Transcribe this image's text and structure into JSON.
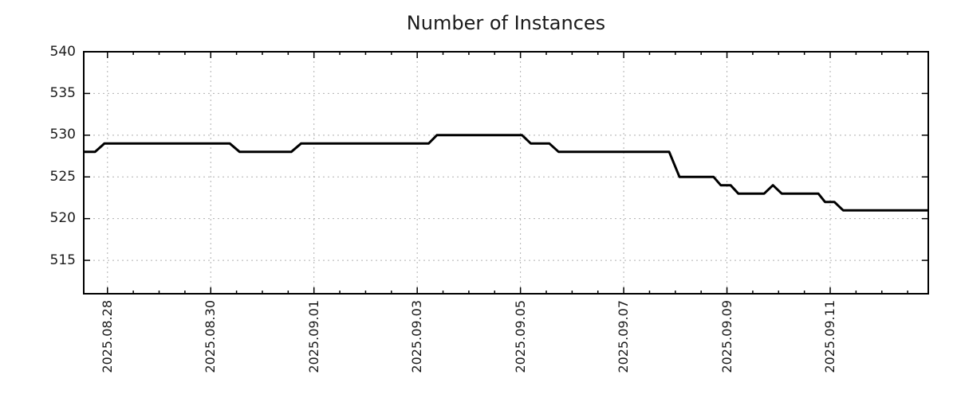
{
  "title": "Number of Instances",
  "colors": {
    "background": "#ffffff",
    "line": "#000000",
    "grid": "#b0b0b0",
    "axis": "#000000",
    "text": "#1a1a1a"
  },
  "chart_data": {
    "type": "line",
    "title": "Number of Instances",
    "xlabel": "",
    "ylabel": "",
    "grid": true,
    "legend": null,
    "x_axis": {
      "day_zero_label": "2025.08.28",
      "range_days": [
        -0.46,
        15.9
      ],
      "major_tick_days": [
        0,
        2,
        4,
        6,
        8,
        10,
        12,
        14
      ],
      "tick_labels": [
        "2025.08.28",
        "2025.08.30",
        "2025.09.01",
        "2025.09.03",
        "2025.09.05",
        "2025.09.07",
        "2025.09.09",
        "2025.09.11"
      ],
      "minor_tick_interval_days": 0.5
    },
    "y_axis": {
      "range": [
        511,
        540
      ],
      "tick_values": [
        540,
        535,
        530,
        525,
        520,
        515
      ],
      "tick_labels": [
        "540",
        "535",
        "530",
        "525",
        "520",
        "515"
      ]
    },
    "series": [
      {
        "name": "Number of Instances",
        "points_day_value": [
          [
            -0.46,
            528
          ],
          [
            -0.24,
            528
          ],
          [
            -0.06,
            529
          ],
          [
            2.37,
            529
          ],
          [
            2.56,
            528
          ],
          [
            3.56,
            528
          ],
          [
            3.75,
            529
          ],
          [
            6.22,
            529
          ],
          [
            6.38,
            530
          ],
          [
            8.03,
            530
          ],
          [
            8.2,
            529
          ],
          [
            8.56,
            529
          ],
          [
            8.74,
            528
          ],
          [
            10.88,
            528
          ],
          [
            11.08,
            525
          ],
          [
            11.74,
            525
          ],
          [
            11.88,
            524
          ],
          [
            12.07,
            524
          ],
          [
            12.22,
            523
          ],
          [
            12.72,
            523
          ],
          [
            12.89,
            524
          ],
          [
            13.06,
            523
          ],
          [
            13.77,
            523
          ],
          [
            13.9,
            522
          ],
          [
            14.08,
            522
          ],
          [
            14.25,
            521
          ],
          [
            15.9,
            521
          ]
        ]
      }
    ]
  }
}
